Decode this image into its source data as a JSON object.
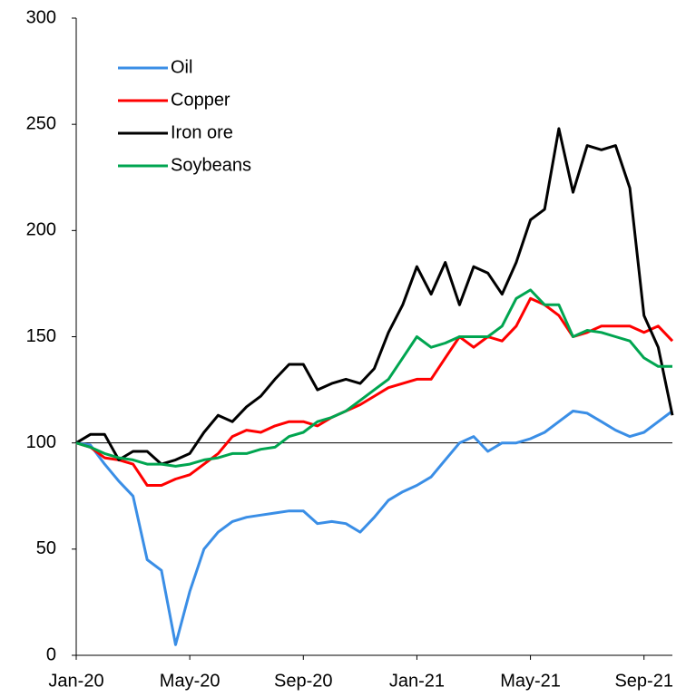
{
  "chart_data": {
    "type": "line",
    "categories": [
      "Jan-20",
      null,
      null,
      null,
      null,
      null,
      null,
      null,
      "May-20",
      null,
      null,
      null,
      null,
      null,
      null,
      null,
      "Sep-20",
      null,
      null,
      null,
      null,
      null,
      null,
      null,
      "Jan-21",
      null,
      null,
      null,
      null,
      null,
      null,
      null,
      "May-21",
      null,
      null,
      null,
      null,
      null,
      null,
      null,
      "Sep-21",
      null,
      null
    ],
    "series": [
      {
        "name": "Oil",
        "color": "#3a8ee6",
        "values": [
          100,
          99,
          90,
          82,
          75,
          45,
          40,
          5,
          30,
          50,
          58,
          63,
          65,
          66,
          67,
          68,
          68,
          62,
          63,
          62,
          58,
          65,
          73,
          77,
          80,
          84,
          92,
          100,
          103,
          96,
          100,
          100,
          102,
          105,
          110,
          115,
          114,
          110,
          106,
          103,
          105,
          110,
          115
        ]
      },
      {
        "name": "Copper",
        "color": "#ff0000",
        "values": [
          100,
          98,
          93,
          92,
          90,
          80,
          80,
          83,
          85,
          90,
          95,
          103,
          106,
          105,
          108,
          110,
          110,
          108,
          112,
          115,
          118,
          122,
          126,
          128,
          130,
          130,
          140,
          150,
          145,
          150,
          148,
          155,
          168,
          165,
          160,
          150,
          152,
          155,
          155,
          155,
          152,
          155,
          148
        ]
      },
      {
        "name": "Iron ore",
        "color": "#000000",
        "values": [
          100,
          104,
          104,
          92,
          96,
          96,
          90,
          92,
          95,
          105,
          113,
          110,
          117,
          122,
          130,
          137,
          137,
          125,
          128,
          130,
          128,
          135,
          152,
          165,
          183,
          170,
          185,
          165,
          183,
          180,
          170,
          185,
          205,
          210,
          248,
          218,
          240,
          238,
          240,
          220,
          160,
          145,
          113
        ]
      },
      {
        "name": "Soybeans",
        "color": "#00a550",
        "values": [
          100,
          98,
          95,
          93,
          92,
          90,
          90,
          89,
          90,
          92,
          93,
          95,
          95,
          97,
          98,
          103,
          105,
          110,
          112,
          115,
          120,
          125,
          130,
          140,
          150,
          145,
          147,
          150,
          150,
          150,
          155,
          168,
          172,
          165,
          165,
          150,
          153,
          152,
          150,
          148,
          140,
          136,
          136
        ]
      }
    ],
    "ylim": [
      0,
      300
    ],
    "yticks": [
      0,
      50,
      100,
      150,
      200,
      250,
      300
    ],
    "reference_line": 100,
    "grid": false,
    "legend": "upper left"
  }
}
